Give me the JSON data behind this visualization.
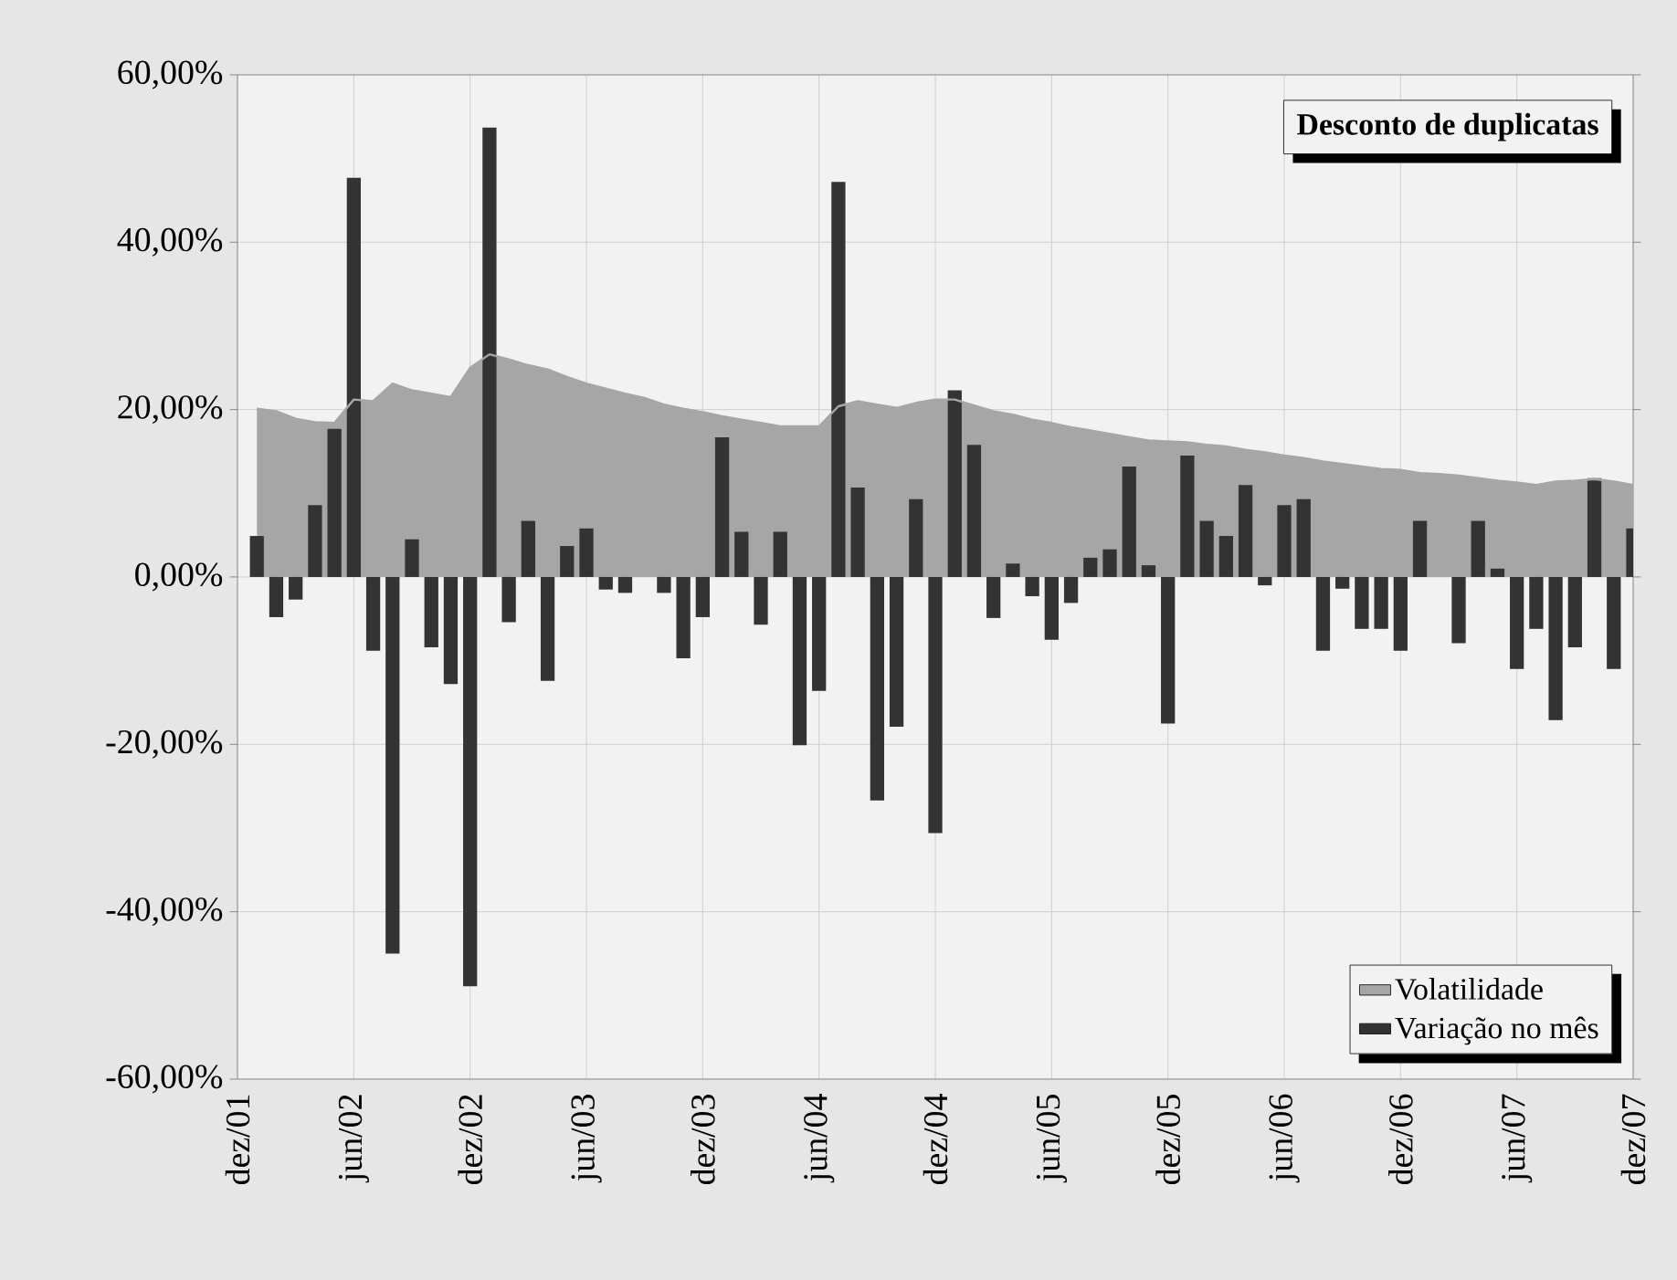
{
  "chart_data": {
    "type": "bar",
    "title": "Desconto de duplicatas",
    "x": [
      "2002-01",
      "2002-02",
      "2002-03",
      "2002-04",
      "2002-05",
      "2002-06",
      "2002-07",
      "2002-08",
      "2002-09",
      "2002-10",
      "2002-11",
      "2002-12",
      "2003-01",
      "2003-02",
      "2003-03",
      "2003-04",
      "2003-05",
      "2003-06",
      "2003-07",
      "2003-08",
      "2003-09",
      "2003-10",
      "2003-11",
      "2003-12",
      "2004-01",
      "2004-02",
      "2004-03",
      "2004-04",
      "2004-05",
      "2004-06",
      "2004-07",
      "2004-08",
      "2004-09",
      "2004-10",
      "2004-11",
      "2004-12",
      "2005-01",
      "2005-02",
      "2005-03",
      "2005-04",
      "2005-05",
      "2005-06",
      "2005-07",
      "2005-08",
      "2005-09",
      "2005-10",
      "2005-11",
      "2005-12",
      "2006-01",
      "2006-02",
      "2006-03",
      "2006-04",
      "2006-05",
      "2006-06",
      "2006-07",
      "2006-08",
      "2006-09",
      "2006-10",
      "2006-11",
      "2006-12",
      "2007-01",
      "2007-02",
      "2007-03",
      "2007-04",
      "2007-05",
      "2007-06",
      "2007-07",
      "2007-08",
      "2007-09",
      "2007-10",
      "2007-11",
      "2007-12"
    ],
    "series": [
      {
        "name": "Volatilidade",
        "type": "area",
        "color": "#a6a6a6",
        "values": [
          20.1,
          19.8,
          18.9,
          18.5,
          18.4,
          21.2,
          21.0,
          23.1,
          22.3,
          21.9,
          21.5,
          25.0,
          26.6,
          26.0,
          25.3,
          24.8,
          23.9,
          23.1,
          22.5,
          21.9,
          21.4,
          20.6,
          20.1,
          19.7,
          19.2,
          18.8,
          18.4,
          18.0,
          18.0,
          18.0,
          20.4,
          21.0,
          20.6,
          20.2,
          20.8,
          21.2,
          21.2,
          20.5,
          19.8,
          19.4,
          18.8,
          18.4,
          17.9,
          17.5,
          17.1,
          16.7,
          16.3,
          16.2,
          16.1,
          15.8,
          15.6,
          15.2,
          14.9,
          14.5,
          14.2,
          13.8,
          13.5,
          13.2,
          12.9,
          12.8,
          12.4,
          12.3,
          12.1,
          11.8,
          11.5,
          11.3,
          11.0,
          11.4,
          11.5,
          11.7,
          11.4,
          11.0
        ]
      },
      {
        "name": "Variação no mês",
        "color": "#333333",
        "values": [
          4.9,
          -4.8,
          -2.7,
          8.6,
          17.7,
          47.7,
          -8.8,
          -45.0,
          4.5,
          -8.4,
          -12.8,
          -48.9,
          53.7,
          -5.4,
          6.7,
          -12.4,
          3.7,
          5.8,
          -1.5,
          -1.9,
          0,
          -1.9,
          -9.7,
          -4.8,
          16.7,
          5.4,
          -5.7,
          5.4,
          -20.1,
          -13.6,
          47.2,
          10.7,
          -26.7,
          -17.9,
          9.3,
          -30.6,
          22.3,
          15.8,
          -4.9,
          1.6,
          -2.3,
          -7.5,
          -3.1,
          2.3,
          3.3,
          13.2,
          1.4,
          -17.5,
          14.5,
          6.7,
          4.9,
          11.0,
          -1.0,
          8.6,
          9.3,
          -8.8,
          -1.4,
          -6.2,
          -6.2,
          -8.8,
          6.7,
          0,
          -7.9,
          6.7,
          1.0,
          -11.0,
          -6.2,
          -17.1,
          -8.4,
          11.8,
          -11.0,
          5.8
        ]
      }
    ],
    "xlim": [
      "2001-12",
      "2007-12"
    ],
    "xticks": [
      {
        "value": "2001-12",
        "label": "dez/01"
      },
      {
        "value": "2002-06",
        "label": "jun/02"
      },
      {
        "value": "2002-12",
        "label": "dez/02"
      },
      {
        "value": "2003-06",
        "label": "jun/03"
      },
      {
        "value": "2003-12",
        "label": "dez/03"
      },
      {
        "value": "2004-06",
        "label": "jun/04"
      },
      {
        "value": "2004-12",
        "label": "dez/04"
      },
      {
        "value": "2005-06",
        "label": "jun/05"
      },
      {
        "value": "2005-12",
        "label": "dez/05"
      },
      {
        "value": "2006-06",
        "label": "jun/06"
      },
      {
        "value": "2006-12",
        "label": "dez/06"
      },
      {
        "value": "2007-06",
        "label": "jun/07"
      },
      {
        "value": "2007-12",
        "label": "dez/07"
      }
    ],
    "ylim": [
      -60,
      60
    ],
    "yticks": [
      {
        "value": -60,
        "label": "-60,00%"
      },
      {
        "value": -40,
        "label": "-40,00%"
      },
      {
        "value": -20,
        "label": "-20,00%"
      },
      {
        "value": 0,
        "label": "0,00%"
      },
      {
        "value": 20,
        "label": "20,00%"
      },
      {
        "value": 40,
        "label": "40,00%"
      },
      {
        "value": 60,
        "label": "60,00%"
      }
    ],
    "grid": true,
    "legend": "bottom right"
  }
}
